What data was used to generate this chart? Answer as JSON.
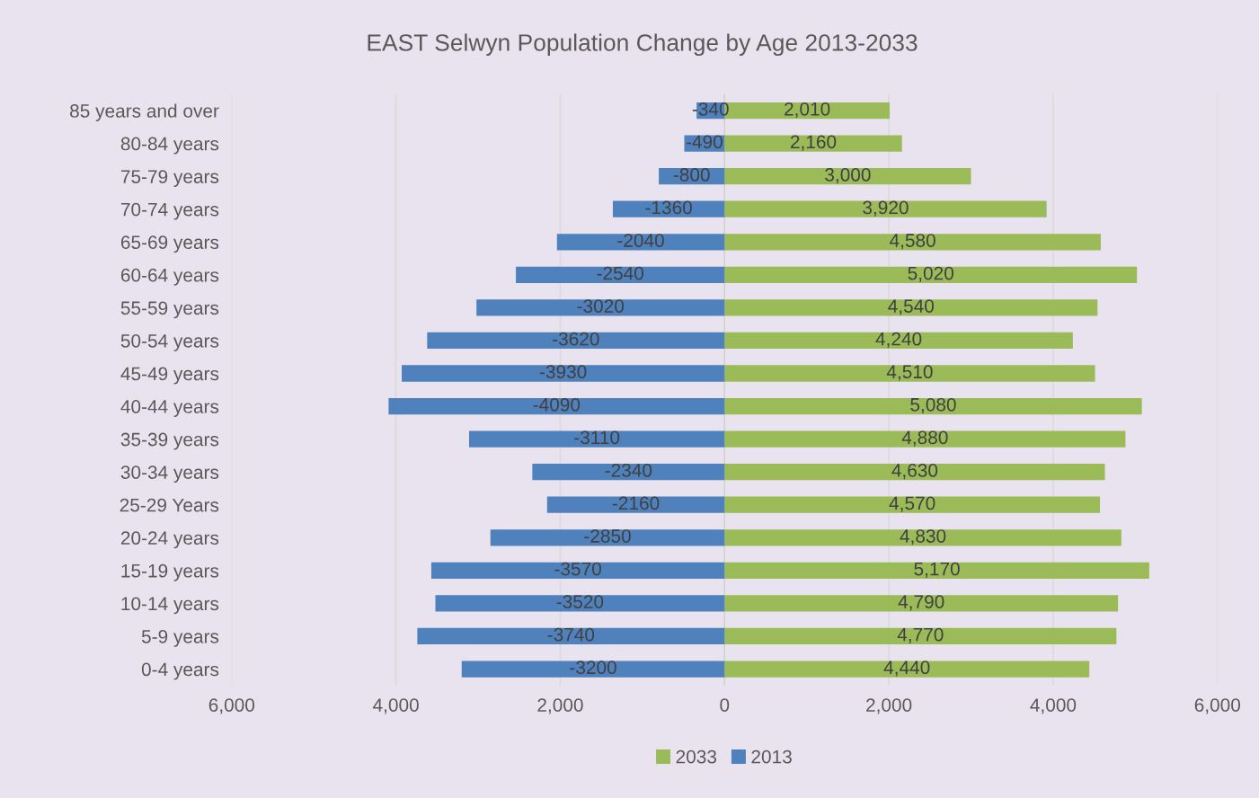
{
  "chart_data": {
    "type": "bar",
    "orientation": "horizontal",
    "title": "EAST Selwyn Population Change by Age 2013-2033",
    "categories": [
      "85 years and over",
      "80-84 years",
      "75-79 years",
      "70-74 years",
      "65-69 years",
      "60-64 years",
      "55-59 years",
      "50-54 years",
      "45-49 years",
      "40-44 years",
      "35-39 years",
      "30-34 years",
      "25-29 Years",
      "20-24 years",
      "15-19 years",
      "10-14 years",
      "5-9 years",
      "0-4 years"
    ],
    "series": [
      {
        "name": "2033",
        "color": "#9bbb59",
        "values": [
          2010,
          2160,
          3000,
          3920,
          4580,
          5020,
          4540,
          4240,
          4510,
          5080,
          4880,
          4630,
          4570,
          4830,
          5170,
          4790,
          4770,
          4440
        ],
        "value_labels": [
          "2,010",
          "2,160",
          "3,000",
          "3,920",
          "4,580",
          "5,020",
          "4,540",
          "4,240",
          "4,510",
          "5,080",
          "4,880",
          "4,630",
          "4,570",
          "4,830",
          "5,170",
          "4,790",
          "4,770",
          "4,440"
        ]
      },
      {
        "name": "2013",
        "color": "#4f81bd",
        "values": [
          -340,
          -490,
          -800,
          -1360,
          -2040,
          -2540,
          -3020,
          -3620,
          -3930,
          -4090,
          -3110,
          -2340,
          -2160,
          -2850,
          -3570,
          -3520,
          -3740,
          -3200
        ],
        "value_labels": [
          "-340",
          "-490",
          "-800",
          "-1360",
          "-2040",
          "-2540",
          "-3020",
          "-3620",
          "-3930",
          "-4090",
          "-3110",
          "-2340",
          "-2160",
          "-2850",
          "-3570",
          "-3520",
          "-3740",
          "-3200"
        ]
      }
    ],
    "xlim": [
      -6000,
      6000
    ],
    "xticks": [
      {
        "value": -6000,
        "label": "6,000"
      },
      {
        "value": -4000,
        "label": "4,000"
      },
      {
        "value": -2000,
        "label": "2,000"
      },
      0,
      {
        "value": 2000,
        "label": "2,000"
      },
      {
        "value": 4000,
        "label": "4,000"
      },
      {
        "value": 6000,
        "label": "6,000"
      }
    ],
    "grid": "x",
    "stacked": true,
    "legend": "bottom"
  }
}
